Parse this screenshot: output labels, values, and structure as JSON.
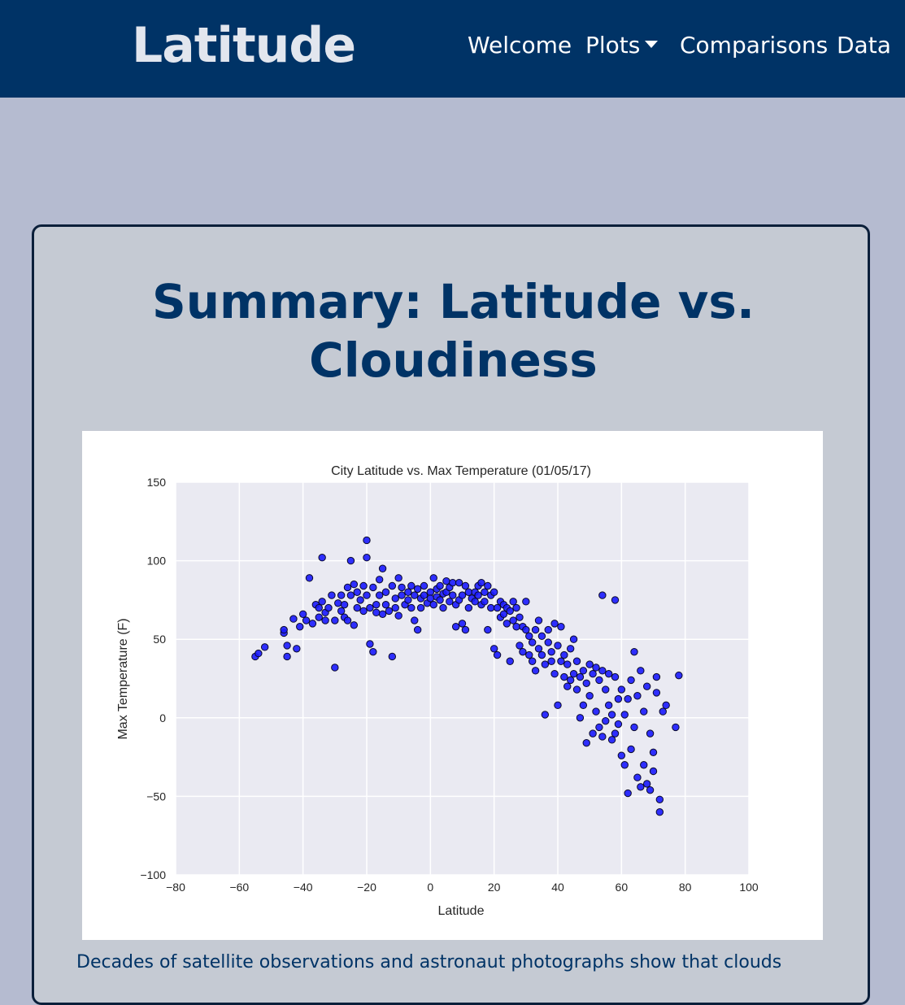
{
  "navbar": {
    "brand": "Latitude",
    "items": [
      {
        "label": "Welcome"
      },
      {
        "label": "Plots"
      },
      {
        "label": "Comparisons"
      },
      {
        "label": "Data"
      }
    ]
  },
  "card": {
    "title_line1": "Summary: Latitude vs.",
    "title_line2": "Cloudiness",
    "body_text": "Decades of satellite observations and astronaut photographs show that clouds"
  },
  "colors": {
    "navbar": "#003366",
    "page_background": "#b5bbd0",
    "card_background": "#c5cad3",
    "title": "#003366",
    "plot_area": "#eaeaf2",
    "marker": "#1a1aff"
  },
  "icons": {
    "dropdown": "chevron-down-icon"
  },
  "chart_data": {
    "type": "scatter",
    "title": "City Latitude vs. Max Temperature (01/05/17)",
    "xlabel": "Latitude",
    "ylabel": "Max Temperature (F)",
    "xlim": [
      -80,
      100
    ],
    "ylim": [
      -100,
      150
    ],
    "xticks": [
      "−80",
      "−60",
      "−40",
      "−20",
      "0",
      "20",
      "40",
      "60",
      "80",
      "100"
    ],
    "yticks": [
      "−100",
      "−50",
      "0",
      "50",
      "100",
      "150"
    ],
    "grid": true,
    "points": [
      [
        -55,
        39
      ],
      [
        -54,
        41
      ],
      [
        -52,
        45
      ],
      [
        -46,
        54
      ],
      [
        -46,
        56
      ],
      [
        -45,
        39
      ],
      [
        -45,
        46
      ],
      [
        -43,
        63
      ],
      [
        -42,
        44
      ],
      [
        -41,
        58
      ],
      [
        -40,
        66
      ],
      [
        -39,
        62
      ],
      [
        -38,
        89
      ],
      [
        -37,
        60
      ],
      [
        -36,
        72
      ],
      [
        -35,
        64
      ],
      [
        -35,
        70
      ],
      [
        -34,
        102
      ],
      [
        -34,
        74
      ],
      [
        -33,
        67
      ],
      [
        -33,
        62
      ],
      [
        -32,
        70
      ],
      [
        -31,
        78
      ],
      [
        -30,
        32
      ],
      [
        -30,
        62
      ],
      [
        -29,
        73
      ],
      [
        -28,
        68
      ],
      [
        -28,
        78
      ],
      [
        -27,
        64
      ],
      [
        -27,
        72
      ],
      [
        -26,
        62
      ],
      [
        -26,
        83
      ],
      [
        -25,
        100
      ],
      [
        -25,
        78
      ],
      [
        -24,
        59
      ],
      [
        -24,
        85
      ],
      [
        -23,
        70
      ],
      [
        -23,
        80
      ],
      [
        -22,
        75
      ],
      [
        -21,
        84
      ],
      [
        -21,
        68
      ],
      [
        -20,
        113
      ],
      [
        -20,
        102
      ],
      [
        -20,
        78
      ],
      [
        -19,
        47
      ],
      [
        -19,
        70
      ],
      [
        -18,
        42
      ],
      [
        -18,
        83
      ],
      [
        -17,
        72
      ],
      [
        -17,
        67
      ],
      [
        -16,
        88
      ],
      [
        -16,
        78
      ],
      [
        -15,
        95
      ],
      [
        -15,
        66
      ],
      [
        -14,
        80
      ],
      [
        -14,
        72
      ],
      [
        -13,
        68
      ],
      [
        -12,
        39
      ],
      [
        -12,
        84
      ],
      [
        -11,
        70
      ],
      [
        -11,
        76
      ],
      [
        -10,
        89
      ],
      [
        -10,
        65
      ],
      [
        -9,
        78
      ],
      [
        -9,
        83
      ],
      [
        -8,
        72
      ],
      [
        -7,
        80
      ],
      [
        -7,
        75
      ],
      [
        -6,
        84
      ],
      [
        -6,
        70
      ],
      [
        -5,
        78
      ],
      [
        -5,
        62
      ],
      [
        -4,
        56
      ],
      [
        -4,
        82
      ],
      [
        -3,
        76
      ],
      [
        -3,
        70
      ],
      [
        -2,
        84
      ],
      [
        -2,
        78
      ],
      [
        -1,
        73
      ],
      [
        0,
        80
      ],
      [
        0,
        76
      ],
      [
        1,
        89
      ],
      [
        1,
        72
      ],
      [
        2,
        82
      ],
      [
        2,
        77
      ],
      [
        3,
        84
      ],
      [
        3,
        75
      ],
      [
        4,
        79
      ],
      [
        4,
        70
      ],
      [
        5,
        87
      ],
      [
        5,
        80
      ],
      [
        6,
        74
      ],
      [
        6,
        83
      ],
      [
        7,
        86
      ],
      [
        7,
        78
      ],
      [
        8,
        58
      ],
      [
        8,
        72
      ],
      [
        9,
        86
      ],
      [
        9,
        75
      ],
      [
        10,
        78
      ],
      [
        10,
        60
      ],
      [
        11,
        84
      ],
      [
        11,
        56
      ],
      [
        12,
        80
      ],
      [
        12,
        70
      ],
      [
        13,
        76
      ],
      [
        14,
        80
      ],
      [
        14,
        74
      ],
      [
        15,
        84
      ],
      [
        15,
        78
      ],
      [
        16,
        72
      ],
      [
        16,
        86
      ],
      [
        17,
        80
      ],
      [
        17,
        74
      ],
      [
        18,
        84
      ],
      [
        18,
        56
      ],
      [
        19,
        78
      ],
      [
        19,
        70
      ],
      [
        20,
        44
      ],
      [
        20,
        80
      ],
      [
        21,
        40
      ],
      [
        21,
        70
      ],
      [
        22,
        74
      ],
      [
        22,
        64
      ],
      [
        23,
        66
      ],
      [
        23,
        72
      ],
      [
        24,
        70
      ],
      [
        24,
        60
      ],
      [
        25,
        36
      ],
      [
        25,
        68
      ],
      [
        26,
        62
      ],
      [
        26,
        74
      ],
      [
        27,
        58
      ],
      [
        27,
        70
      ],
      [
        28,
        46
      ],
      [
        28,
        64
      ],
      [
        29,
        42
      ],
      [
        29,
        58
      ],
      [
        30,
        56
      ],
      [
        30,
        74
      ],
      [
        31,
        40
      ],
      [
        31,
        52
      ],
      [
        32,
        36
      ],
      [
        32,
        48
      ],
      [
        33,
        30
      ],
      [
        33,
        56
      ],
      [
        34,
        44
      ],
      [
        34,
        62
      ],
      [
        35,
        52
      ],
      [
        35,
        40
      ],
      [
        36,
        2
      ],
      [
        36,
        34
      ],
      [
        37,
        48
      ],
      [
        37,
        56
      ],
      [
        38,
        36
      ],
      [
        38,
        42
      ],
      [
        39,
        60
      ],
      [
        39,
        28
      ],
      [
        40,
        46
      ],
      [
        40,
        8
      ],
      [
        41,
        58
      ],
      [
        41,
        36
      ],
      [
        42,
        26
      ],
      [
        42,
        40
      ],
      [
        43,
        20
      ],
      [
        43,
        34
      ],
      [
        44,
        44
      ],
      [
        44,
        24
      ],
      [
        45,
        28
      ],
      [
        45,
        50
      ],
      [
        46,
        18
      ],
      [
        46,
        36
      ],
      [
        47,
        0
      ],
      [
        47,
        26
      ],
      [
        48,
        8
      ],
      [
        48,
        30
      ],
      [
        49,
        -16
      ],
      [
        49,
        22
      ],
      [
        50,
        14
      ],
      [
        50,
        34
      ],
      [
        51,
        -10
      ],
      [
        51,
        28
      ],
      [
        52,
        4
      ],
      [
        52,
        32
      ],
      [
        53,
        -6
      ],
      [
        53,
        24
      ],
      [
        54,
        78
      ],
      [
        54,
        -12
      ],
      [
        54,
        30
      ],
      [
        55,
        -2
      ],
      [
        55,
        18
      ],
      [
        56,
        8
      ],
      [
        56,
        28
      ],
      [
        57,
        -14
      ],
      [
        57,
        2
      ],
      [
        58,
        75
      ],
      [
        58,
        26
      ],
      [
        58,
        -10
      ],
      [
        59,
        12
      ],
      [
        59,
        -4
      ],
      [
        60,
        -24
      ],
      [
        60,
        18
      ],
      [
        61,
        2
      ],
      [
        61,
        -30
      ],
      [
        62,
        -48
      ],
      [
        62,
        12
      ],
      [
        63,
        -20
      ],
      [
        63,
        24
      ],
      [
        64,
        -6
      ],
      [
        64,
        42
      ],
      [
        65,
        -38
      ],
      [
        65,
        14
      ],
      [
        66,
        -44
      ],
      [
        66,
        30
      ],
      [
        67,
        -30
      ],
      [
        67,
        4
      ],
      [
        68,
        -42
      ],
      [
        68,
        20
      ],
      [
        69,
        -46
      ],
      [
        69,
        -10
      ],
      [
        70,
        -22
      ],
      [
        70,
        -34
      ],
      [
        71,
        16
      ],
      [
        71,
        26
      ],
      [
        72,
        -52
      ],
      [
        72,
        -60
      ],
      [
        73,
        4
      ],
      [
        74,
        8
      ],
      [
        77,
        -6
      ],
      [
        78,
        27
      ]
    ]
  }
}
